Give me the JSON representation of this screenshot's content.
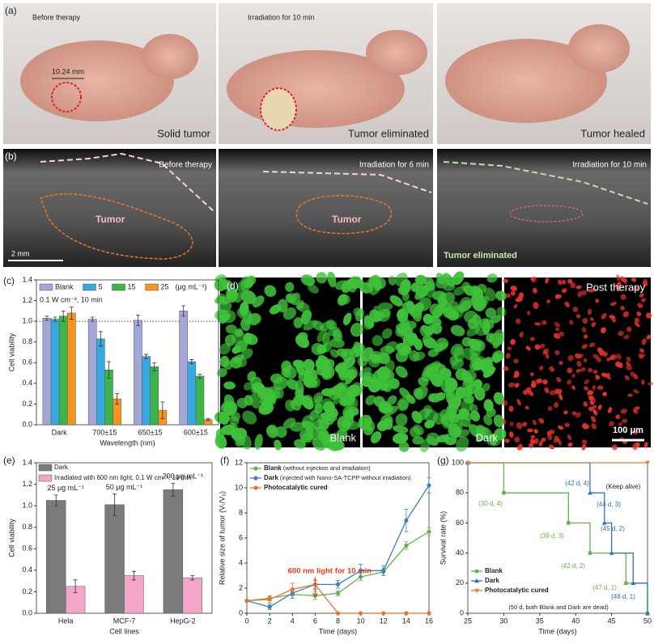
{
  "panel_labels": [
    "(a)",
    "(b)",
    "(c)",
    "(d)",
    "(e)",
    "(f)",
    "(g)"
  ],
  "photos_a": {
    "captions_top": [
      "Before therapy",
      "Irradiation for 10 min"
    ],
    "scale": "10.24 mm",
    "captions_bottom": [
      "Solid tumor",
      "Tumor eliminated",
      "Tumor healed"
    ]
  },
  "ultrasound_b": {
    "captions": [
      "Before therapy",
      "Irradiation for 6 min",
      "Irradiation for 10 min"
    ],
    "tumor_labels": [
      "Tumor",
      "Tumor",
      "Tumor eliminated"
    ],
    "scale": "2 mm"
  },
  "fluorescence_d": {
    "caption": "Post therapy",
    "labels": [
      "Blank",
      "Dark"
    ],
    "scale": "100 μm"
  },
  "chart_data": [
    {
      "type": "bar",
      "y_label": "Cell viability",
      "x_label": "Wavelength (nm)",
      "annotation": "0.1 W cm⁻², 10 min",
      "legend_unit": "(μg mL⁻¹)",
      "legend": "upper left",
      "categories": [
        "Dark",
        "700±15",
        "650±15",
        "600±15"
      ],
      "series": [
        {
          "name": "Blank",
          "color": "#a3a6d9",
          "values": [
            1.03,
            1.02,
            1.01,
            1.1
          ],
          "errors": [
            0.02,
            0.02,
            0.05,
            0.05
          ]
        },
        {
          "name": "5",
          "color": "#36a9e1",
          "values": [
            1.02,
            0.83,
            0.66,
            0.61
          ],
          "errors": [
            0.02,
            0.07,
            0.02,
            0.02
          ]
        },
        {
          "name": "15",
          "color": "#3cb44a",
          "values": [
            1.05,
            0.53,
            0.56,
            0.47
          ],
          "errors": [
            0.05,
            0.08,
            0.04,
            0.02
          ]
        },
        {
          "name": "25",
          "color": "#f7941d",
          "values": [
            1.08,
            0.25,
            0.14,
            0.05
          ],
          "errors": [
            0.06,
            0.05,
            0.08,
            0.01
          ]
        }
      ],
      "ylim": [
        0,
        1.4
      ],
      "yticks": [
        {
          "value": 0,
          "label": "0.0"
        },
        0.2,
        0.4,
        0.6,
        0.8,
        {
          "value": 1,
          "label": "1.0"
        },
        1.2,
        1.4
      ],
      "reference_line": 1
    },
    {
      "type": "bar",
      "y_label": "Cell viability",
      "x_label": "Cell lines",
      "legend": "upper left",
      "categories": [
        "Hela",
        "MCF-7",
        "HepG-2"
      ],
      "category_notes": [
        "25 μg mL⁻¹",
        "50 μg mL⁻¹",
        "200 μg mL⁻¹"
      ],
      "series": [
        {
          "name": "Dark",
          "color": "#7b7b7b",
          "values": [
            1.05,
            1.01,
            1.15
          ],
          "errors": [
            0.05,
            0.1,
            0.06
          ]
        },
        {
          "name": "Irradiated with 600 nm light, 0.1 W cm⁻², 10 min",
          "color": "#f4a6c9",
          "values": [
            0.25,
            0.35,
            0.33
          ],
          "errors": [
            0.06,
            0.04,
            0.02
          ]
        }
      ],
      "ylim": [
        0,
        1.4
      ],
      "yticks": [
        {
          "value": 0,
          "label": "0.0"
        },
        0.2,
        0.4,
        0.6,
        0.8,
        {
          "value": 1,
          "label": "1.0"
        },
        1.2,
        1.4
      ]
    },
    {
      "type": "line",
      "y_label": "Relative size of tumor (Vₜ/V₀)",
      "x_label": "Time (days)",
      "annotation": "600 nm light for 10 min",
      "legend": "upper left",
      "x": [
        0,
        2,
        4,
        6,
        8,
        10,
        12,
        14,
        16
      ],
      "series": [
        {
          "name": "Blank",
          "description": "(without injection and irradiation)",
          "color": "#6ab04c",
          "values": [
            1,
            1.2,
            1.5,
            1.4,
            1.6,
            2.9,
            3.3,
            5.4,
            6.5
          ],
          "errors": [
            0,
            0.2,
            0.3,
            0.3,
            0.2,
            0.3,
            0.3,
            0.3,
            0.3
          ]
        },
        {
          "name": "Dark",
          "description": "(injected with Nano-SA-TCPP without irradiation)",
          "color": "#3f7fc1",
          "values": [
            1,
            0.5,
            1.6,
            2.3,
            2.3,
            3.4,
            3.4,
            7.4,
            10.2
          ],
          "errors": [
            0,
            0.2,
            0.4,
            0.3,
            0.3,
            0.5,
            0.4,
            0.9,
            0.6
          ]
        },
        {
          "name": "Photocatalytic cured",
          "color": "#e8742c",
          "values": [
            1,
            1.1,
            1.9,
            2.3,
            0,
            0,
            0,
            0,
            0
          ],
          "errors": [
            0,
            0.3,
            0.5,
            0.4,
            0,
            0,
            0,
            0,
            0
          ]
        }
      ],
      "xlim": [
        0,
        16
      ],
      "xticks": [
        0,
        2,
        4,
        6,
        8,
        10,
        12,
        14,
        16
      ],
      "ylim": [
        0,
        12
      ],
      "yticks": [
        0,
        2,
        4,
        6,
        8,
        10,
        12
      ]
    },
    {
      "type": "step",
      "y_label": "Survival rate (%)",
      "x_label": "Time (days)",
      "legend": "lower left",
      "series": [
        {
          "name": "Blank",
          "color": "#6ab04c",
          "marker": "square",
          "x": [
            25,
            30,
            39,
            42,
            47,
            50
          ],
          "values": [
            100,
            80,
            60,
            40,
            20,
            0
          ]
        },
        {
          "name": "Dark",
          "color": "#2e75b6",
          "marker": "triangle",
          "x": [
            25,
            42,
            44,
            45,
            48,
            50
          ],
          "values": [
            100,
            80,
            60,
            40,
            20,
            0
          ]
        },
        {
          "name": "Photocatalytic cured",
          "color": "#f07c2c",
          "marker": "triangle-down",
          "x": [
            25,
            50
          ],
          "values": [
            100,
            100
          ]
        }
      ],
      "annotations": [
        "(30 d, 4)",
        "(39 d, 3)",
        "(42 d, 2)",
        "(47 d, 1)",
        "(42 d, 4)",
        "(44 d, 3)",
        "(45 d, 2)",
        "(48 d, 1)",
        "(Keep alive)",
        "(50 d, both Blank and Dark are dead)"
      ],
      "xlim": [
        25,
        50
      ],
      "xticks": [
        25,
        30,
        35,
        40,
        45,
        50
      ],
      "ylim": [
        0,
        100
      ],
      "yticks": [
        0,
        20,
        40,
        60,
        80,
        100
      ]
    }
  ]
}
